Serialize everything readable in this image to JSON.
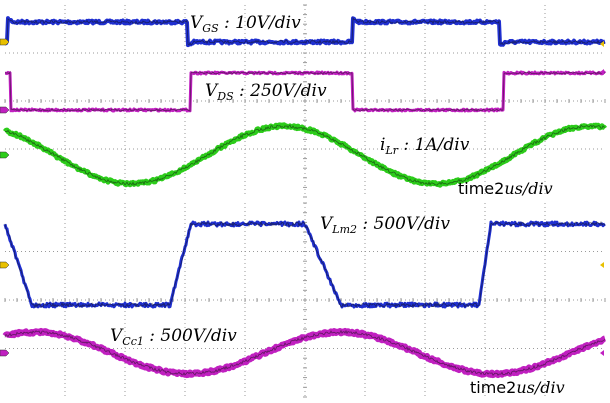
{
  "chart_data": [
    {
      "type": "line",
      "panel": "top",
      "x_unit_label": "time2us/div",
      "x_range_div": [
        0,
        10
      ],
      "grid": "dotted 10x8 divisions",
      "series": [
        {
          "name": "V_GS : 10V/div",
          "label_main": "V",
          "label_sub": "GS",
          "label_rest": " : 10V/div",
          "color": "#1f2fd0",
          "kind": "square",
          "low_div": 0.0,
          "high_div": 0.55,
          "transitions_div": [
            0.05,
            3.05,
            5.8,
            8.25
          ],
          "start_level": "low",
          "noise": 0.05,
          "overshoot": true
        },
        {
          "name": "V_DS : 250V/div",
          "label_main": "V",
          "label_sub": "DS",
          "label_rest": " : 250V/div",
          "color": "#c020c0",
          "kind": "square",
          "low_div": 0.0,
          "high_div": 0.55,
          "transitions_div": [
            0.1,
            3.1,
            5.8,
            8.3
          ],
          "start_level": "high",
          "noise": 0.03,
          "overshoot": false
        },
        {
          "name": "i_Lr : 1A/div",
          "label_main": "i",
          "label_sub": "Lr",
          "label_rest": " : 1A/div",
          "color": "#2ccc1a",
          "kind": "sine",
          "amplitude_div": 1.2,
          "period_div": 5.1,
          "peak_at_div": 4.65,
          "noise": 0.06
        }
      ]
    },
    {
      "type": "line",
      "panel": "bottom",
      "x_unit_label": "time2us/div",
      "x_range_div": [
        0,
        10
      ],
      "grid": "dotted 10x8 divisions",
      "series": [
        {
          "name": "V_Lm2 : 500V/div",
          "label_main": "V",
          "label_sub": "Lm2",
          "label_rest": " : 500V/div",
          "color": "#1f2fd0",
          "kind": "trapezoid",
          "low_div": 0.0,
          "high_div": 1.8,
          "edges_div": [
            [
              0.0,
              0.45,
              "fall"
            ],
            [
              2.75,
              3.1,
              "rise"
            ],
            [
              5.0,
              5.6,
              "fall"
            ],
            [
              7.9,
              8.1,
              "rise"
            ]
          ],
          "start_level": "high",
          "noise": 0.06
        },
        {
          "name": "V_Cc1 : 500V/div",
          "label_main": "V",
          "label_sub": "Cc1",
          "label_rest": " : 500V/div",
          "color": "#c020c0",
          "kind": "sine",
          "amplitude_div": 0.95,
          "period_div": 5.1,
          "peak_at_div": 0.5,
          "noise": 0.05
        }
      ]
    }
  ],
  "labels": {
    "top_time": {
      "pre": "time",
      "num": "2",
      "unit": "us/div"
    },
    "bottom_time": {
      "pre": "time",
      "num": "2",
      "unit": "us/div"
    }
  },
  "markers": {
    "ch1_color": "#e8c000",
    "ch2_color": "#c020c0",
    "ch3_color": "#2ccc1a"
  }
}
